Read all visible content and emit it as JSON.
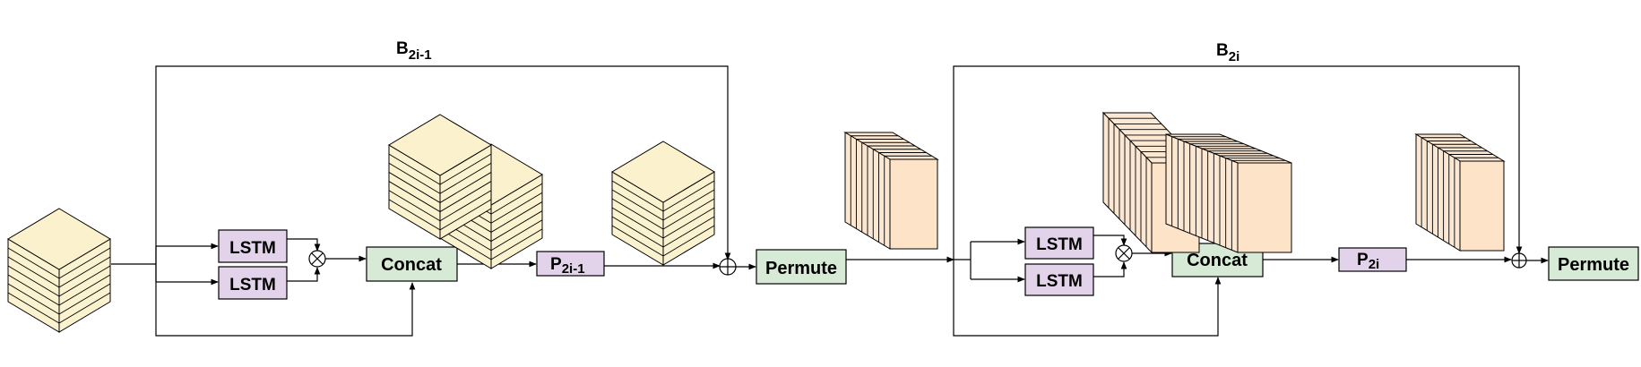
{
  "blocks": [
    {
      "label": {
        "main": "B",
        "sub": "2i-1"
      },
      "lstm_top": "LSTM",
      "lstm_bottom": "LSTM",
      "concat": "Concat",
      "proj": {
        "main": "P",
        "sub": "2i-1"
      },
      "permute": "Permute"
    },
    {
      "label": {
        "main": "B",
        "sub": "2i"
      },
      "lstm_top": "LSTM",
      "lstm_bottom": "LSTM",
      "concat": "Concat",
      "proj": {
        "main": "P",
        "sub": "2i"
      },
      "permute": "Permute"
    }
  ],
  "colors": {
    "lstm_fill": "#e3d3ea",
    "concat_fill": "#d7ead5",
    "cube_yellow_top": "#fbf1cc",
    "cube_yellow_side": "#fbf2cf",
    "cube_peach_front": "#fde3c8",
    "cube_peach_side": "#fce8d2"
  },
  "icons": [
    "multiply-icon",
    "add-icon",
    "arrow-head-icon"
  ]
}
